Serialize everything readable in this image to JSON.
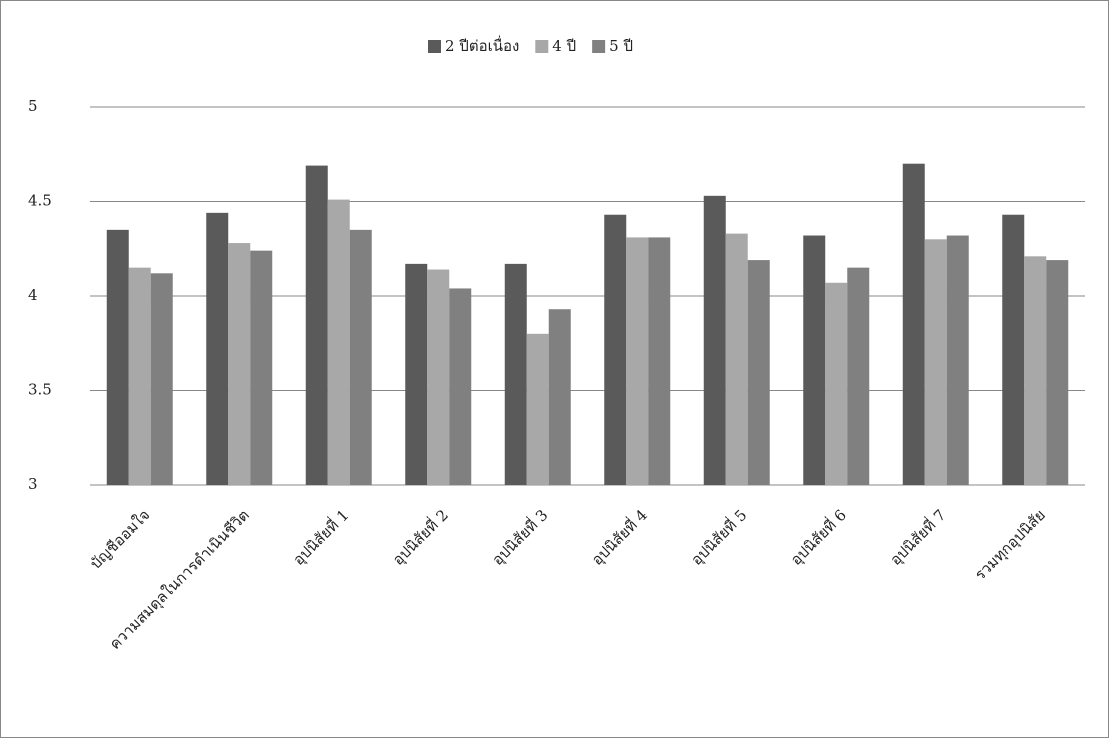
{
  "chart_data": {
    "type": "bar",
    "categories": [
      "บัญชีออมใจ",
      "ความสมดุลในการดำเนินชีวิต",
      "อุปนิสัยที่ 1",
      "อุปนิสัยที่ 2",
      "อุปนิสัยที่ 3",
      "อุปนิสัยที่ 4",
      "อุปนิสัยที่ 5",
      "อุปนิสัยที่ 6",
      "อุปนิสัยที่ 7",
      "รวมทุกอุปนิสัย"
    ],
    "series": [
      {
        "name": "2 ปีต่อเนื่อง",
        "color": "#5a5a5a",
        "values": [
          4.35,
          4.44,
          4.69,
          4.17,
          4.17,
          4.43,
          4.53,
          4.32,
          4.7,
          4.43
        ]
      },
      {
        "name": "4 ปี",
        "color": "#a8a8a8",
        "values": [
          4.15,
          4.28,
          4.51,
          4.14,
          3.8,
          4.31,
          4.33,
          4.07,
          4.3,
          4.21
        ]
      },
      {
        "name": "5 ปี",
        "color": "#808080",
        "values": [
          4.12,
          4.24,
          4.35,
          4.04,
          3.93,
          4.31,
          4.19,
          4.15,
          4.32,
          4.19
        ]
      }
    ],
    "ylim": [
      3,
      5
    ],
    "yticks": [
      3,
      3.5,
      4,
      4.5,
      5
    ],
    "grid": true,
    "legend": "top"
  }
}
